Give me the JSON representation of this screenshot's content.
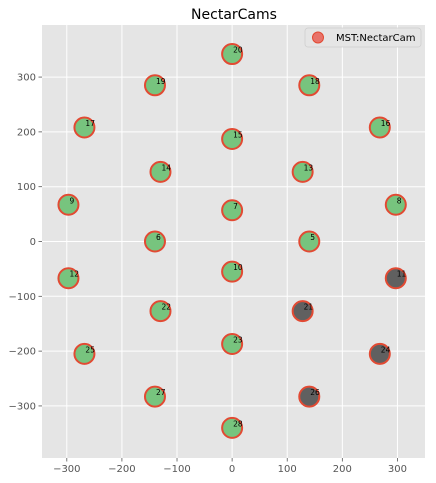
{
  "chart_data": {
    "type": "scatter",
    "title": "NectarCams",
    "xlabel": "",
    "ylabel": "",
    "xlim": [
      -345,
      350
    ],
    "ylim": [
      -395,
      395
    ],
    "xticks": [
      -300,
      -200,
      -100,
      0,
      100,
      200,
      300
    ],
    "yticks": [
      -300,
      -200,
      -100,
      0,
      100,
      200,
      300
    ],
    "grid": true,
    "legend": {
      "placement": "top-right",
      "entries": [
        "MST:NectarCam"
      ]
    },
    "colors": {
      "background": "#e5e5e5",
      "grid": "#ffffff",
      "marker_edge": "#e24a33",
      "marker_active": "#77c47e",
      "marker_inactive": "#606060",
      "legend_marker": "#e8736a"
    },
    "series": [
      {
        "name": "MST:NectarCam",
        "points": [
          {
            "id": "5",
            "x": 140,
            "y": 0,
            "status": "active"
          },
          {
            "id": "6",
            "x": -140,
            "y": 0,
            "status": "active"
          },
          {
            "id": "7",
            "x": 0,
            "y": 57,
            "status": "active"
          },
          {
            "id": "8",
            "x": 297,
            "y": 67,
            "status": "active"
          },
          {
            "id": "9",
            "x": -297,
            "y": 67,
            "status": "active"
          },
          {
            "id": "10",
            "x": 0,
            "y": -55,
            "status": "active"
          },
          {
            "id": "11",
            "x": 297,
            "y": -67,
            "status": "inactive"
          },
          {
            "id": "12",
            "x": -297,
            "y": -67,
            "status": "active"
          },
          {
            "id": "13",
            "x": 128,
            "y": 127,
            "status": "active"
          },
          {
            "id": "14",
            "x": -130,
            "y": 127,
            "status": "active"
          },
          {
            "id": "15",
            "x": 0,
            "y": 187,
            "status": "active"
          },
          {
            "id": "16",
            "x": 268,
            "y": 208,
            "status": "active"
          },
          {
            "id": "17",
            "x": -268,
            "y": 208,
            "status": "active"
          },
          {
            "id": "18",
            "x": 140,
            "y": 285,
            "status": "active"
          },
          {
            "id": "19",
            "x": -140,
            "y": 285,
            "status": "active"
          },
          {
            "id": "20",
            "x": 0,
            "y": 342,
            "status": "active"
          },
          {
            "id": "21",
            "x": 128,
            "y": -127,
            "status": "inactive"
          },
          {
            "id": "22",
            "x": -130,
            "y": -127,
            "status": "active"
          },
          {
            "id": "23",
            "x": 0,
            "y": -187,
            "status": "active"
          },
          {
            "id": "24",
            "x": 268,
            "y": -205,
            "status": "inactive"
          },
          {
            "id": "25",
            "x": -268,
            "y": -205,
            "status": "active"
          },
          {
            "id": "26",
            "x": 140,
            "y": -283,
            "status": "inactive"
          },
          {
            "id": "27",
            "x": -140,
            "y": -283,
            "status": "active"
          },
          {
            "id": "28",
            "x": 0,
            "y": -340,
            "status": "active"
          }
        ]
      }
    ]
  }
}
